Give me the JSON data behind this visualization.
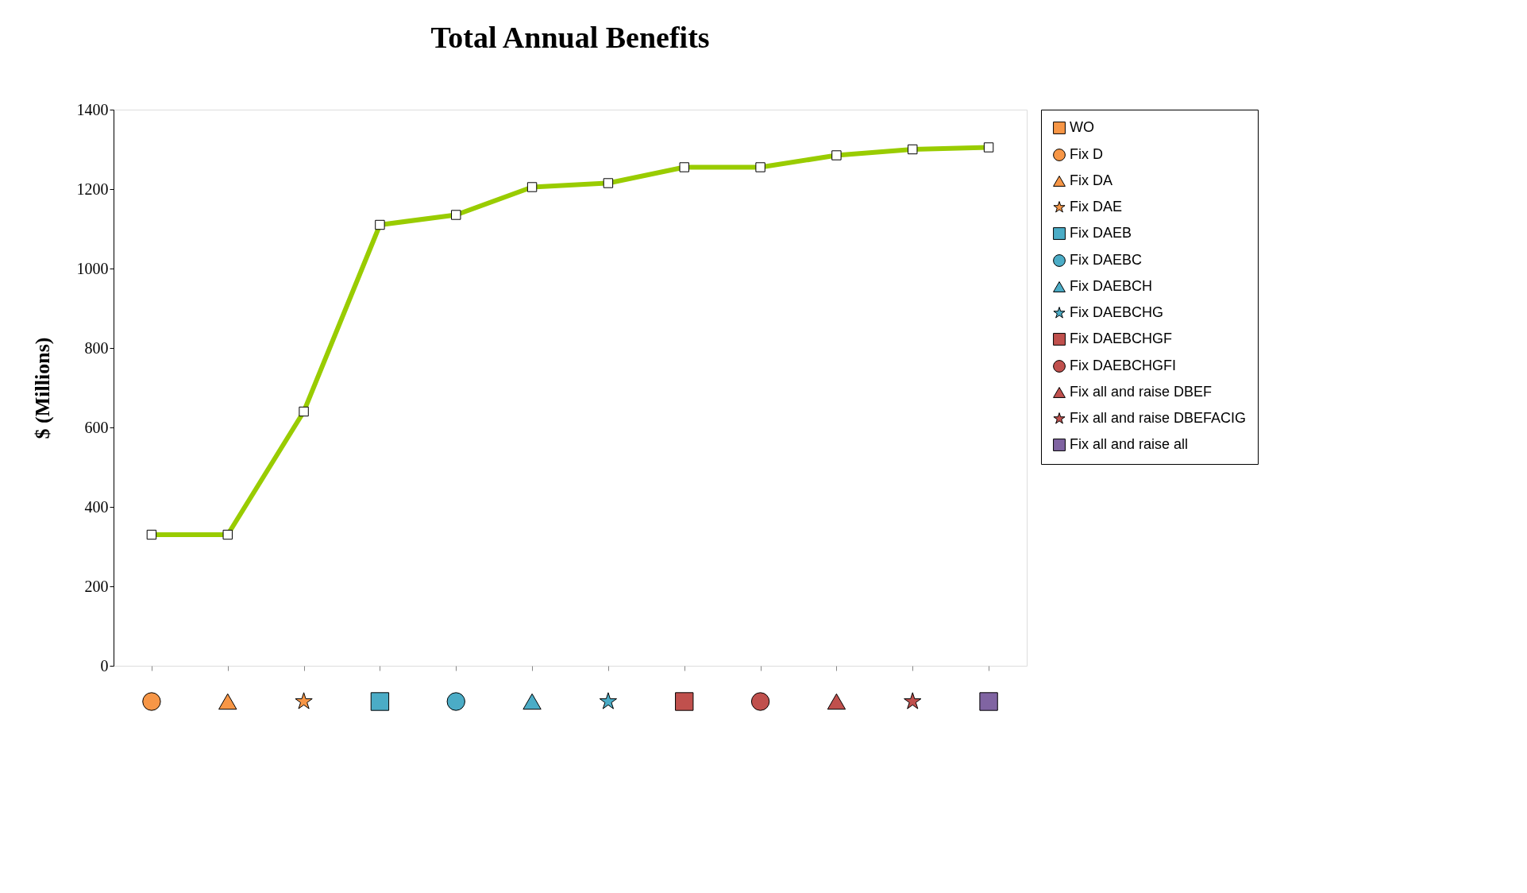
{
  "chart_data": {
    "type": "line",
    "title": "Total Annual Benefits",
    "ylabel": "$ (Millions)",
    "categories": [
      null,
      null,
      null,
      null,
      null,
      null,
      null,
      null,
      null,
      null,
      null,
      null
    ],
    "ylim": [
      0,
      1400
    ],
    "yticks": [
      0,
      200,
      400,
      600,
      800,
      1000,
      1200,
      1400
    ],
    "grid": false,
    "legend": "right",
    "series": [
      {
        "color": "#99cc00",
        "marker": "square",
        "values": [
          330,
          330,
          640,
          1110,
          1135,
          1205,
          1215,
          1255,
          1255,
          1285,
          1300,
          1305
        ]
      },
      {
        "type": "scatter",
        "name": "WO",
        "color": "#f79646",
        "marker": "square",
        "values": [
          null,
          null,
          null,
          null,
          null,
          null,
          null,
          null,
          null,
          null,
          null,
          null
        ]
      },
      {
        "type": "scatter",
        "name": "Fix D",
        "color": "#f79646",
        "marker": "circle",
        "values": [
          null,
          null,
          null,
          null,
          null,
          null,
          null,
          null,
          null,
          null,
          null,
          null
        ]
      },
      {
        "type": "scatter",
        "name": "Fix DA",
        "color": "#f79646",
        "marker": "triangle",
        "values": [
          null,
          null,
          null,
          null,
          null,
          null,
          null,
          null,
          null,
          null,
          null,
          null
        ]
      },
      {
        "type": "scatter",
        "name": "Fix DAE",
        "color": "#f79646",
        "marker": "star",
        "values": [
          null,
          null,
          null,
          null,
          null,
          null,
          null,
          null,
          null,
          null,
          null,
          null
        ]
      },
      {
        "type": "scatter",
        "name": "Fix DAEB",
        "color": "#4bacc6",
        "marker": "square",
        "values": [
          null,
          null,
          null,
          null,
          null,
          null,
          null,
          null,
          null,
          null,
          null,
          null
        ]
      },
      {
        "type": "scatter",
        "name": "Fix DAEBC",
        "color": "#4bacc6",
        "marker": "circle",
        "values": [
          null,
          null,
          null,
          null,
          null,
          null,
          null,
          null,
          null,
          null,
          null,
          null
        ]
      },
      {
        "type": "scatter",
        "name": "Fix DAEBCH",
        "color": "#4bacc6",
        "marker": "triangle",
        "values": [
          null,
          null,
          null,
          null,
          null,
          null,
          null,
          null,
          null,
          null,
          null,
          null
        ]
      },
      {
        "type": "scatter",
        "name": "Fix DAEBCHG",
        "color": "#4bacc6",
        "marker": "star",
        "values": [
          null,
          null,
          null,
          null,
          null,
          null,
          null,
          null,
          null,
          null,
          null,
          null
        ]
      },
      {
        "type": "scatter",
        "name": "Fix DAEBCHGF",
        "color": "#c0504d",
        "marker": "square",
        "values": [
          null,
          null,
          null,
          null,
          null,
          null,
          null,
          null,
          null,
          null,
          null,
          null
        ]
      },
      {
        "type": "scatter",
        "name": "Fix DAEBCHGFI",
        "color": "#c0504d",
        "marker": "circle",
        "values": [
          null,
          null,
          null,
          null,
          null,
          null,
          null,
          null,
          null,
          null,
          null,
          null
        ]
      },
      {
        "type": "scatter",
        "name": "Fix all and raise DBEF",
        "color": "#c0504d",
        "marker": "triangle",
        "values": [
          null,
          null,
          null,
          null,
          null,
          null,
          null,
          null,
          null,
          null,
          null,
          null
        ]
      },
      {
        "type": "scatter",
        "name": "Fix all and raise DBEFACIG",
        "color": "#c0504d",
        "marker": "star",
        "values": [
          null,
          null,
          null,
          null,
          null,
          null,
          null,
          null,
          null,
          null,
          null,
          null
        ]
      },
      {
        "type": "scatter",
        "name": "Fix all and raise all",
        "color": "#8064a2",
        "marker": "square",
        "values": [
          null,
          null,
          null,
          null,
          null,
          null,
          null,
          null,
          null,
          null,
          null,
          null
        ]
      }
    ]
  }
}
